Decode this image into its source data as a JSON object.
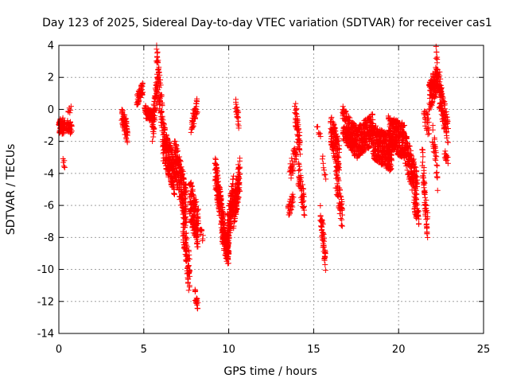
{
  "chart_data": {
    "type": "scatter",
    "title": "Day 123 of 2025, Sidereal Day-to-day VTEC variation (SDTVAR) for receiver cas1",
    "xlabel": "GPS time / hours",
    "ylabel": "SDTVAR / TECUs",
    "xlim": [
      0,
      25
    ],
    "ylim": [
      -14,
      4
    ],
    "x_ticks": [
      0,
      5,
      10,
      15,
      20,
      25
    ],
    "y_ticks": [
      -14,
      -12,
      -10,
      -8,
      -6,
      -4,
      -2,
      0,
      2,
      4
    ],
    "x_tick_labels": [
      "0",
      "5",
      "10",
      "15",
      "20",
      "25"
    ],
    "y_tick_labels": [
      "-14",
      "-12",
      "-10",
      "-8",
      "-6",
      "-4",
      "-2",
      "0",
      "2",
      "4"
    ],
    "grid": true,
    "marker": "+",
    "marker_color": "#ff0000",
    "series": [
      {
        "name": "SDTVAR",
        "segments": [
          {
            "t0": 0.0,
            "t1": 0.35,
            "n": 70,
            "start": -1.1,
            "end": -1.0,
            "noise": 0.5
          },
          {
            "t0": 0.25,
            "t1": 0.35,
            "n": 6,
            "start": -3.0,
            "end": -3.8,
            "noise": 0.3
          },
          {
            "t0": 0.45,
            "t1": 0.75,
            "n": 40,
            "start": -1.0,
            "end": -1.2,
            "noise": 0.4
          },
          {
            "t0": 0.55,
            "t1": 0.7,
            "n": 6,
            "start": -0.2,
            "end": 0.1,
            "noise": 0.2
          },
          {
            "t0": 3.7,
            "t1": 4.05,
            "n": 60,
            "start": -0.3,
            "end": -1.6,
            "noise": 0.6
          },
          {
            "t0": 4.6,
            "t1": 4.95,
            "n": 50,
            "start": 0.6,
            "end": 1.3,
            "noise": 0.4
          },
          {
            "t0": 5.05,
            "t1": 5.55,
            "n": 70,
            "start": -0.1,
            "end": -0.5,
            "noise": 0.4
          },
          {
            "t0": 5.5,
            "t1": 5.8,
            "n": 60,
            "start": -1.5,
            "end": 1.5,
            "noise": 1.0
          },
          {
            "t0": 5.75,
            "t1": 6.15,
            "n": 80,
            "start": 3.6,
            "end": -1.5,
            "noise": 1.2
          },
          {
            "t0": 6.15,
            "t1": 6.8,
            "n": 180,
            "start": -2.0,
            "end": -4.2,
            "noise": 1.2
          },
          {
            "t0": 6.8,
            "t1": 7.5,
            "n": 200,
            "start": -3.0,
            "end": -6.0,
            "noise": 1.3
          },
          {
            "t0": 7.3,
            "t1": 7.7,
            "n": 90,
            "start": -7.0,
            "end": -10.5,
            "noise": 1.2
          },
          {
            "t0": 7.7,
            "t1": 8.2,
            "n": 150,
            "start": -5.5,
            "end": -7.5,
            "noise": 1.3
          },
          {
            "t0": 7.8,
            "t1": 8.15,
            "n": 40,
            "start": -1.0,
            "end": 0.3,
            "noise": 0.5
          },
          {
            "t0": 8.0,
            "t1": 8.2,
            "n": 20,
            "start": -11.5,
            "end": -12.4,
            "noise": 0.4
          },
          {
            "t0": 8.3,
            "t1": 8.5,
            "n": 10,
            "start": -7.5,
            "end": -8.0,
            "noise": 0.3
          },
          {
            "t0": 9.2,
            "t1": 9.7,
            "n": 150,
            "start": -3.9,
            "end": -7.5,
            "noise": 1.0
          },
          {
            "t0": 9.6,
            "t1": 10.0,
            "n": 120,
            "start": -7.5,
            "end": -9.2,
            "noise": 0.8
          },
          {
            "t0": 9.9,
            "t1": 10.3,
            "n": 130,
            "start": -8.0,
            "end": -5.0,
            "noise": 1.2
          },
          {
            "t0": 10.3,
            "t1": 10.65,
            "n": 120,
            "start": -6.5,
            "end": -4.0,
            "noise": 1.1
          },
          {
            "t0": 10.4,
            "t1": 10.6,
            "n": 20,
            "start": 0.5,
            "end": -1.0,
            "noise": 0.5
          },
          {
            "t0": 13.5,
            "t1": 13.8,
            "n": 30,
            "start": -6.3,
            "end": -5.7,
            "noise": 0.5
          },
          {
            "t0": 13.6,
            "t1": 14.0,
            "n": 40,
            "start": -4.0,
            "end": -2.5,
            "noise": 0.6
          },
          {
            "t0": 13.9,
            "t1": 14.2,
            "n": 50,
            "start": 0.0,
            "end": -2.5,
            "noise": 0.8
          },
          {
            "t0": 14.1,
            "t1": 14.45,
            "n": 50,
            "start": -4.0,
            "end": -6.0,
            "noise": 0.8
          },
          {
            "t0": 15.2,
            "t1": 15.4,
            "n": 6,
            "start": -1.2,
            "end": -1.5,
            "noise": 0.2
          },
          {
            "t0": 15.4,
            "t1": 15.7,
            "n": 50,
            "start": -6.5,
            "end": -9.5,
            "noise": 0.7
          },
          {
            "t0": 15.5,
            "t1": 15.7,
            "n": 8,
            "start": -3.0,
            "end": -4.0,
            "noise": 0.4
          },
          {
            "t0": 16.0,
            "t1": 16.5,
            "n": 120,
            "start": -1.2,
            "end": -3.0,
            "noise": 1.0
          },
          {
            "t0": 16.3,
            "t1": 16.7,
            "n": 60,
            "start": -4.0,
            "end": -6.8,
            "noise": 0.9
          },
          {
            "t0": 16.7,
            "t1": 17.6,
            "n": 220,
            "start": -0.8,
            "end": -2.2,
            "noise": 1.0
          },
          {
            "t0": 17.6,
            "t1": 18.5,
            "n": 200,
            "start": -2.0,
            "end": -1.2,
            "noise": 1.0
          },
          {
            "t0": 18.5,
            "t1": 19.6,
            "n": 300,
            "start": -2.0,
            "end": -2.8,
            "noise": 1.1
          },
          {
            "t0": 19.4,
            "t1": 20.4,
            "n": 260,
            "start": -1.5,
            "end": -2.0,
            "noise": 1.1
          },
          {
            "t0": 20.4,
            "t1": 21.1,
            "n": 150,
            "start": -2.5,
            "end": -5.0,
            "noise": 1.2
          },
          {
            "t0": 20.9,
            "t1": 21.2,
            "n": 30,
            "start": -6.0,
            "end": -6.8,
            "noise": 0.4
          },
          {
            "t0": 21.4,
            "t1": 21.7,
            "n": 60,
            "start": -3.0,
            "end": -7.5,
            "noise": 1.0
          },
          {
            "t0": 21.5,
            "t1": 21.8,
            "n": 25,
            "start": -0.2,
            "end": -1.2,
            "noise": 0.6
          },
          {
            "t0": 21.8,
            "t1": 22.3,
            "n": 120,
            "start": 0.8,
            "end": 2.0,
            "noise": 0.9
          },
          {
            "t0": 22.0,
            "t1": 22.3,
            "n": 30,
            "start": -1.5,
            "end": -4.5,
            "noise": 1.0
          },
          {
            "t0": 22.2,
            "t1": 22.55,
            "n": 40,
            "start": 3.2,
            "end": 0.5,
            "noise": 0.8
          },
          {
            "t0": 22.4,
            "t1": 22.9,
            "n": 90,
            "start": 0.8,
            "end": -1.2,
            "noise": 0.9
          },
          {
            "t0": 22.7,
            "t1": 22.9,
            "n": 14,
            "start": -2.8,
            "end": -3.2,
            "noise": 0.3
          }
        ]
      }
    ]
  }
}
